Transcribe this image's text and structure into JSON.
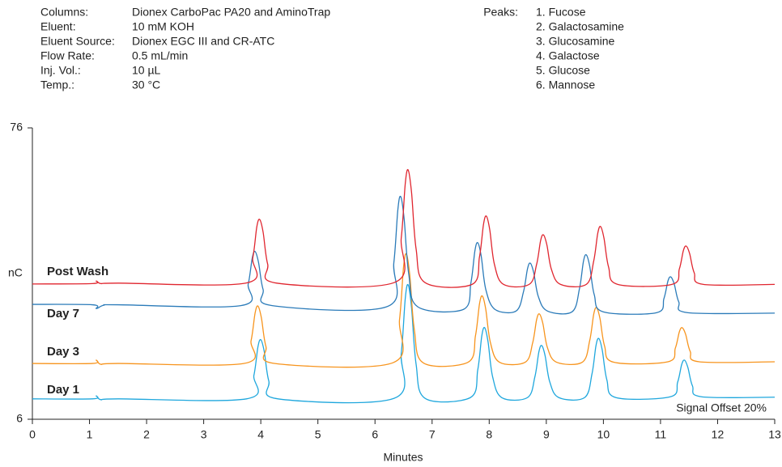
{
  "chart_data": {
    "type": "line",
    "conditions": [
      {
        "label": "Columns:",
        "value": "Dionex CarboPac PA20 and AminoTrap"
      },
      {
        "label": "Eluent:",
        "value": "10 mM KOH"
      },
      {
        "label": "Eluent Source:",
        "value": "Dionex EGC III and CR-ATC"
      },
      {
        "label": "Flow Rate:",
        "value": "0.5 mL/min"
      },
      {
        "label": "Inj. Vol.:",
        "value": "10 µL"
      },
      {
        "label": "Temp.:",
        "value": "30 °C"
      }
    ],
    "peaks_label": "Peaks:",
    "peaks": [
      "1. Fucose",
      "2. Galactosamine",
      "3. Glucosamine",
      "4. Galactose",
      "5. Glucose",
      "6. Mannose"
    ],
    "annotation": "Signal Offset 20%",
    "xlabel": "Minutes",
    "ylabel": "nC",
    "xlim": [
      0,
      13
    ],
    "xticks": [
      0,
      1,
      2,
      3,
      4,
      5,
      6,
      7,
      8,
      9,
      10,
      11,
      12,
      13
    ],
    "ylim": [
      6,
      76
    ],
    "yticks": [
      6,
      76
    ],
    "series": [
      {
        "name": "Day 1",
        "color": "#1fa7dd",
        "x": [
          0,
          1.05,
          1.12,
          1.2,
          1.5,
          3.75,
          3.88,
          3.95,
          4.0,
          4.06,
          4.14,
          4.3,
          6.33,
          6.46,
          6.53,
          6.58,
          6.64,
          6.72,
          6.88,
          7.67,
          7.8,
          7.87,
          7.92,
          7.98,
          8.06,
          8.22,
          8.67,
          8.8,
          8.87,
          8.92,
          8.98,
          9.06,
          9.22,
          9.67,
          9.8,
          9.87,
          9.92,
          9.98,
          10.06,
          10.22,
          11.17,
          11.3,
          11.37,
          11.42,
          11.48,
          11.56,
          11.72,
          13
        ],
        "values": [
          10.9,
          10.9,
          11.6,
          10.7,
          10.9,
          10.9,
          16.6,
          23.4,
          25.1,
          22.3,
          15.2,
          10.9,
          11.0,
          21.9,
          35.0,
          38.3,
          32.8,
          19.2,
          11.0,
          11.2,
          17.9,
          26.0,
          28.0,
          24.6,
          16.2,
          11.2,
          11.2,
          16.2,
          22.2,
          23.7,
          21.2,
          15.0,
          11.2,
          11.2,
          16.9,
          23.7,
          25.4,
          22.6,
          15.5,
          11.2,
          11.4,
          14.9,
          19.1,
          20.2,
          18.4,
          14.0,
          11.4,
          11.3
        ]
      },
      {
        "name": "Day 3",
        "color": "#f7941d",
        "x": [
          0,
          1.05,
          1.12,
          1.2,
          1.5,
          3.7,
          3.83,
          3.9,
          3.95,
          4.01,
          4.09,
          4.25,
          6.3,
          6.43,
          6.5,
          6.55,
          6.61,
          6.69,
          6.85,
          7.63,
          7.76,
          7.83,
          7.88,
          7.94,
          8.02,
          8.18,
          8.63,
          8.76,
          8.83,
          8.88,
          8.94,
          9.02,
          9.18,
          9.63,
          9.76,
          9.83,
          9.88,
          9.94,
          10.02,
          10.18,
          11.13,
          11.26,
          11.33,
          11.38,
          11.44,
          11.52,
          11.68,
          13
        ],
        "values": [
          19.4,
          19.4,
          20.2,
          19.2,
          19.4,
          19.4,
          24.9,
          31.5,
          33.2,
          30.4,
          23.5,
          19.4,
          19.5,
          30.0,
          42.6,
          45.7,
          40.5,
          27.4,
          19.5,
          19.7,
          26.1,
          33.7,
          35.6,
          32.4,
          24.5,
          19.7,
          19.7,
          24.3,
          29.9,
          31.3,
          29.0,
          23.2,
          19.7,
          19.7,
          24.9,
          31.2,
          32.8,
          30.2,
          23.6,
          19.7,
          19.8,
          23.1,
          27.0,
          28.0,
          26.4,
          22.3,
          19.8,
          19.8
        ]
      },
      {
        "name": "Day 7",
        "color": "#2b7bb9",
        "x": [
          0,
          1.05,
          1.12,
          1.25,
          1.5,
          3.65,
          3.78,
          3.85,
          3.9,
          3.96,
          4.04,
          4.2,
          6.2,
          6.33,
          6.4,
          6.45,
          6.51,
          6.59,
          6.75,
          7.55,
          7.68,
          7.75,
          7.8,
          7.86,
          7.94,
          8.1,
          8.47,
          8.6,
          8.67,
          8.72,
          8.78,
          8.86,
          9.02,
          9.45,
          9.58,
          9.65,
          9.7,
          9.76,
          9.84,
          10.0,
          10.93,
          11.06,
          11.13,
          11.18,
          11.24,
          11.32,
          11.48,
          13
        ],
        "values": [
          33.6,
          33.5,
          32.6,
          33.4,
          33.5,
          33.3,
          38.5,
          44.7,
          46.3,
          43.7,
          37.2,
          33.3,
          33.0,
          43.6,
          56.3,
          59.5,
          54.2,
          41.0,
          33.0,
          32.4,
          38.8,
          46.5,
          48.4,
          45.2,
          37.2,
          32.4,
          32.0,
          36.6,
          42.1,
          43.5,
          41.2,
          35.5,
          32.0,
          31.8,
          37.3,
          43.9,
          45.5,
          42.8,
          35.9,
          31.8,
          31.6,
          35.0,
          39.2,
          40.2,
          38.5,
          34.2,
          31.6,
          31.5
        ]
      },
      {
        "name": "Post Wash",
        "color": "#e0262f",
        "x": [
          0,
          1.05,
          1.12,
          1.2,
          1.5,
          3.73,
          3.86,
          3.93,
          3.98,
          4.04,
          4.12,
          4.28,
          6.33,
          6.46,
          6.53,
          6.58,
          6.64,
          6.72,
          6.88,
          7.7,
          7.83,
          7.9,
          7.95,
          8.01,
          8.09,
          8.25,
          8.7,
          8.83,
          8.9,
          8.95,
          9.01,
          9.09,
          9.25,
          9.7,
          9.83,
          9.9,
          9.95,
          10.01,
          10.09,
          10.25,
          11.2,
          11.33,
          11.4,
          11.45,
          11.51,
          11.59,
          11.75,
          13
        ],
        "values": [
          38.5,
          38.6,
          39.2,
          38.6,
          38.7,
          38.7,
          44.8,
          52.2,
          54.0,
          51.0,
          43.3,
          38.7,
          38.8,
          49.6,
          62.6,
          65.9,
          60.5,
          46.9,
          38.8,
          38.4,
          45.0,
          52.8,
          54.8,
          51.5,
          43.3,
          38.4,
          38.4,
          43.2,
          48.9,
          50.3,
          47.9,
          42.0,
          38.4,
          38.4,
          44.0,
          50.6,
          52.3,
          49.5,
          42.6,
          38.4,
          38.4,
          42.1,
          46.5,
          47.6,
          45.8,
          41.2,
          38.4,
          38.4
        ]
      }
    ]
  }
}
